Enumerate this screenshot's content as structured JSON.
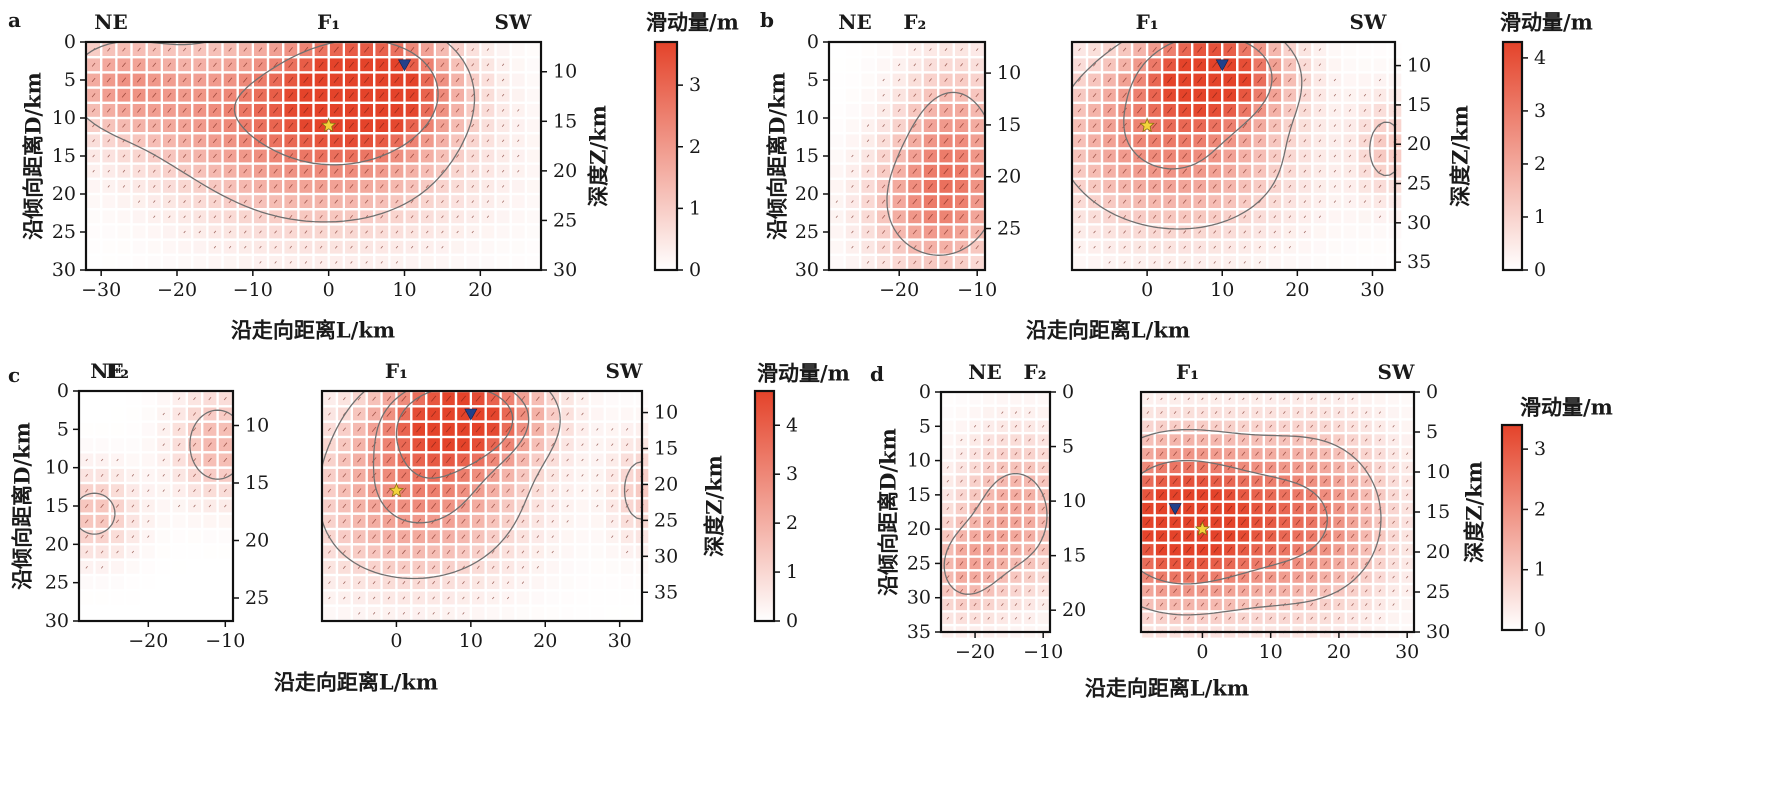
{
  "colors": {
    "slip_max": "#e4432a",
    "slip_min": "#ffffff",
    "contour": "#707070",
    "star": "#f3d33b",
    "triangle": "#22408a",
    "frame": "#111111"
  },
  "labels": {
    "slip_unit": "滑动量/m",
    "depth_axis": "深度Z/km",
    "along_dip": "沿倾向距离D/km",
    "along_strike": "沿走向距离L/km",
    "ne": "NE",
    "sw": "SW",
    "f1": "F₁",
    "f2": "F₂"
  },
  "chart_data": [
    {
      "type": "heatmap",
      "panel": "a",
      "xlabel": "沿走向距离L/km",
      "ylabel": "沿倾向距离D/km",
      "colorbar_label": "滑动量/m",
      "colorbar_ticks": [
        0,
        1,
        2,
        3
      ],
      "colorbar_max": 3.7,
      "segments": [
        {
          "name": "F₁",
          "x_range": [
            -32,
            28
          ],
          "d_range": [
            0,
            30
          ],
          "x_ticks": [
            -30,
            -20,
            -10,
            0,
            10,
            20
          ],
          "d_ticks": [
            0,
            5,
            10,
            15,
            20,
            25,
            30
          ],
          "depth_ticks": [
            10,
            15,
            20,
            25,
            30
          ],
          "depth_at_top": 7,
          "depth_at_bottom": 30,
          "hypocenter": [
            0,
            11
          ],
          "peak_marker": [
            10,
            3
          ],
          "slip_peaks": [
            {
              "x": 6,
              "d": 6,
              "sx": 7,
              "sd": 5,
              "amp": 3.6
            },
            {
              "x": -3,
              "d": 7,
              "sx": 11,
              "sd": 7,
              "amp": 1.8
            },
            {
              "x": -28,
              "d": 5,
              "sx": 5,
              "sd": 4,
              "amp": 1.3
            },
            {
              "x": 0,
              "d": 17,
              "sx": 13,
              "sd": 7,
              "amp": 1.4
            },
            {
              "x": -20,
              "d": 8,
              "sx": 10,
              "sd": 6,
              "amp": 1.0
            }
          ],
          "contour_levels": [
            1,
            2.5
          ]
        }
      ]
    },
    {
      "type": "heatmap",
      "panel": "b",
      "xlabel": "沿走向距离L/km",
      "ylabel": "沿倾向距离D/km",
      "colorbar_label": "滑动量/m",
      "colorbar_ticks": [
        0,
        1,
        2,
        3,
        4
      ],
      "colorbar_max": 4.3,
      "segments": [
        {
          "name": "F₂",
          "x_range": [
            -29,
            -9
          ],
          "d_range": [
            0,
            30
          ],
          "x_ticks": [
            -20,
            -10
          ],
          "d_ticks": [
            0,
            5,
            10,
            15,
            20,
            25,
            30
          ],
          "depth_ticks": [
            10,
            15,
            20,
            25
          ],
          "depth_at_top": 7,
          "depth_at_bottom": 29,
          "slip_peaks": [
            {
              "x": -13,
              "d": 14,
              "sx": 5,
              "sd": 8,
              "amp": 2.2
            },
            {
              "x": -16,
              "d": 22,
              "sx": 6,
              "sd": 6,
              "amp": 1.8
            }
          ],
          "contour_levels": [
            1.5
          ]
        },
        {
          "name": "F₁",
          "x_range": [
            -10,
            33
          ],
          "d_range": [
            0,
            30
          ],
          "x_ticks": [
            0,
            10,
            20,
            30
          ],
          "d_ticks": [
            0,
            5,
            10,
            15,
            20,
            25,
            30
          ],
          "depth_ticks": [
            10,
            15,
            20,
            25,
            30,
            35
          ],
          "depth_at_top": 7,
          "depth_at_bottom": 36,
          "hypocenter": [
            0,
            11
          ],
          "peak_marker": [
            10,
            3
          ],
          "slip_peaks": [
            {
              "x": 9,
              "d": 4,
              "sx": 6,
              "sd": 4,
              "amp": 4.2
            },
            {
              "x": 2,
              "d": 10,
              "sx": 10,
              "sd": 7,
              "amp": 2.1
            },
            {
              "x": 5,
              "d": 18,
              "sx": 11,
              "sd": 7,
              "amp": 1.2
            },
            {
              "x": 32,
              "d": 14,
              "sx": 3,
              "sd": 5,
              "amp": 1.2
            }
          ],
          "contour_levels": [
            1,
            2.5
          ]
        }
      ]
    },
    {
      "type": "heatmap",
      "panel": "c",
      "xlabel": "沿走向距离L/km",
      "ylabel": "沿倾向距离D/km",
      "colorbar_label": "滑动量/m",
      "colorbar_ticks": [
        0,
        1,
        2,
        3,
        4
      ],
      "colorbar_max": 4.7,
      "segments": [
        {
          "name": "F₂",
          "x_range": [
            -29,
            -9
          ],
          "d_range": [
            0,
            30
          ],
          "x_ticks": [
            -20,
            -10
          ],
          "d_ticks": [
            0,
            5,
            10,
            15,
            20,
            25,
            30
          ],
          "depth_ticks": [
            10,
            15,
            20,
            25
          ],
          "depth_at_top": 7,
          "depth_at_bottom": 27,
          "slip_peaks": [
            {
              "x": -11,
              "d": 7,
              "sx": 4,
              "sd": 5,
              "amp": 1.8
            },
            {
              "x": -27,
              "d": 16,
              "sx": 4,
              "sd": 4,
              "amp": 1.5
            }
          ],
          "contour_levels": [
            1.2
          ]
        },
        {
          "name": "F₁",
          "x_range": [
            -10,
            33
          ],
          "d_range": [
            0,
            30
          ],
          "x_ticks": [
            0,
            10,
            20,
            30
          ],
          "d_ticks": [
            0,
            5,
            10,
            15,
            20,
            25,
            30
          ],
          "depth_ticks": [
            10,
            15,
            20,
            25,
            30,
            35
          ],
          "depth_at_top": 7,
          "depth_at_bottom": 39,
          "hypocenter": [
            0,
            13
          ],
          "peak_marker": [
            10,
            3
          ],
          "slip_peaks": [
            {
              "x": 9,
              "d": 3,
              "sx": 7,
              "sd": 4,
              "amp": 4.5
            },
            {
              "x": 4,
              "d": 10,
              "sx": 9,
              "sd": 6,
              "amp": 2.6
            },
            {
              "x": 2,
              "d": 19,
              "sx": 10,
              "sd": 6,
              "amp": 1.3
            },
            {
              "x": 33,
              "d": 13,
              "sx": 3,
              "sd": 5,
              "amp": 1.3
            }
          ],
          "contour_levels": [
            1,
            2.5,
            3.5
          ]
        }
      ]
    },
    {
      "type": "heatmap",
      "panel": "d",
      "xlabel": "沿走向距离L/km",
      "ylabel": "沿倾向距离D/km",
      "colorbar_label": "滑动量/m",
      "colorbar_ticks": [
        0,
        1,
        2,
        3
      ],
      "colorbar_max": 3.4,
      "segments": [
        {
          "name": "F₂",
          "x_range": [
            -25,
            -9
          ],
          "d_range": [
            0,
            35
          ],
          "x_ticks": [
            -20,
            -10
          ],
          "d_ticks": [
            0,
            5,
            10,
            15,
            20,
            25,
            30,
            35
          ],
          "depth_ticks": [
            0,
            5,
            10,
            15,
            20
          ],
          "depth_at_top": 0,
          "depth_at_bottom": 22,
          "slip_peaks": [
            {
              "x": -14,
              "d": 18,
              "sx": 6,
              "sd": 8,
              "amp": 1.6
            },
            {
              "x": -22,
              "d": 26,
              "sx": 4,
              "sd": 5,
              "amp": 1.2
            }
          ],
          "contour_levels": [
            1.2
          ]
        },
        {
          "name": "F₁",
          "x_range": [
            -9,
            31
          ],
          "d_range": [
            0,
            35
          ],
          "x_ticks": [
            0,
            10,
            20,
            30
          ],
          "d_ticks": [
            0,
            5,
            10,
            15,
            20,
            25,
            30,
            35
          ],
          "depth_ticks": [
            0,
            5,
            10,
            15,
            20,
            25,
            30
          ],
          "depth_at_top": 0,
          "depth_at_bottom": 30,
          "hypocenter": [
            0,
            20
          ],
          "peak_marker": [
            -4,
            17
          ],
          "slip_peaks": [
            {
              "x": -5,
              "d": 19,
              "sx": 8,
              "sd": 8,
              "amp": 3.2
            },
            {
              "x": 8,
              "d": 19,
              "sx": 10,
              "sd": 8,
              "amp": 1.8
            },
            {
              "x": 18,
              "d": 18,
              "sx": 8,
              "sd": 10,
              "amp": 1.1
            }
          ],
          "contour_levels": [
            1,
            2.2
          ]
        }
      ]
    }
  ]
}
